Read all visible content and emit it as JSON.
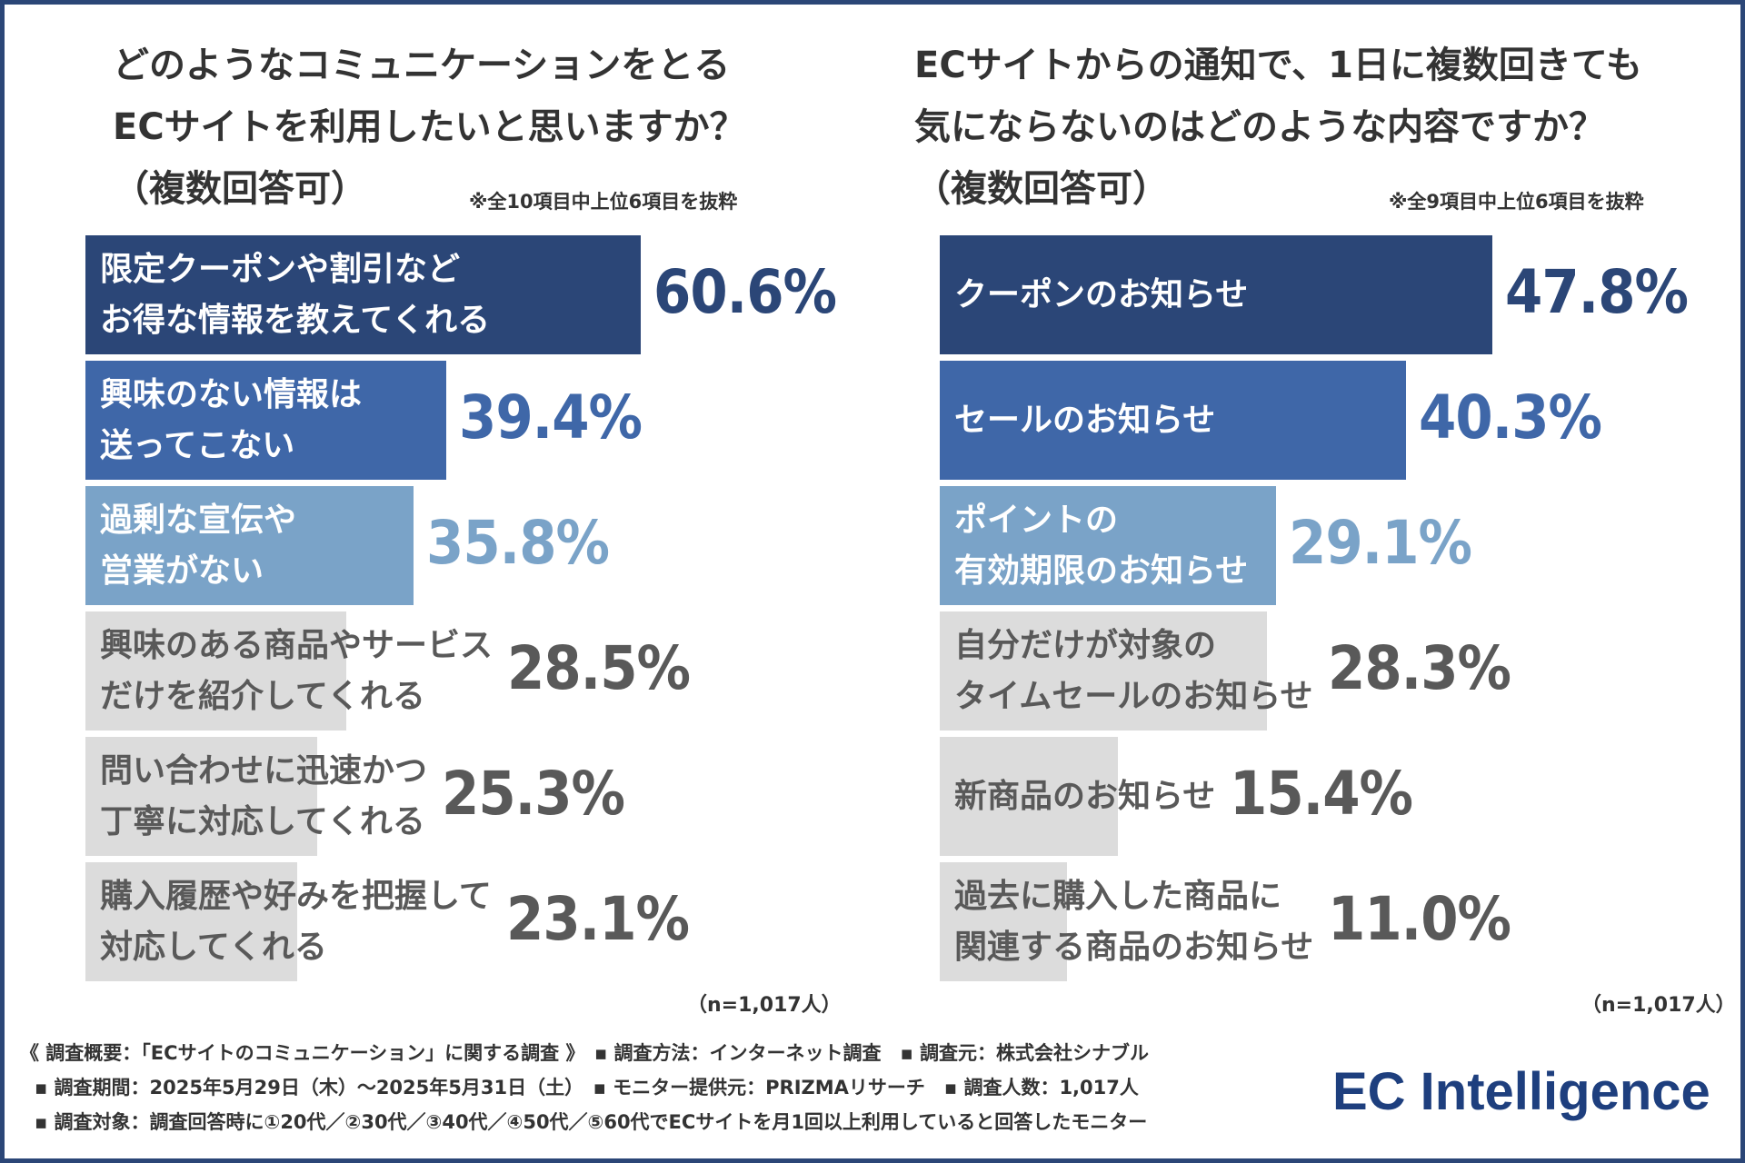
{
  "charts": [
    {
      "title_lines": [
        "どのようなコミュニケーションをとる",
        "ECサイトを利用したいと思いますか？",
        "（複数回答可）"
      ],
      "note": "※全10項目中上位6項目を抜粋",
      "sample": "（n=1,017人）"
    },
    {
      "title_lines": [
        "ECサイトからの通知で、1日に複数回きても",
        "気にならないのはどのような内容ですか？",
        "（複数回答可）"
      ],
      "note": "※全9項目中上位6項目を抜粋",
      "sample": "（n=1,017人）"
    }
  ],
  "chart_data": [
    {
      "type": "bar",
      "orientation": "horizontal",
      "title": "どのようなコミュニケーションをとるECサイトを利用したいと思いますか？（複数回答可）",
      "categories": [
        [
          "限定クーポンや割引など",
          "お得な情報を教えてくれる"
        ],
        [
          "興味のない情報は",
          "送ってこない"
        ],
        [
          "過剰な宣伝や",
          "営業がない"
        ],
        [
          "興味のある商品やサービス",
          "だけを紹介してくれる"
        ],
        [
          "問い合わせに迅速かつ",
          "丁寧に対応してくれる"
        ],
        [
          "購入履歴や好みを把握して",
          "対応してくれる"
        ]
      ],
      "values": [
        60.6,
        39.4,
        35.8,
        28.5,
        25.3,
        23.1
      ],
      "value_labels": [
        "60.6%",
        "39.4%",
        "35.8%",
        "28.5%",
        "25.3%",
        "23.1%"
      ],
      "bar_colors": [
        "#2b4677",
        "#3f67a8",
        "#7aa3c8",
        "#dcdcdc",
        "#dcdcdc",
        "#dcdcdc"
      ],
      "label_colors": [
        "#ffffff",
        "#ffffff",
        "#ffffff",
        "#595959",
        "#595959",
        "#595959"
      ],
      "value_colors": [
        "#2b4677",
        "#3f67a8",
        "#7aa3c8",
        "#595959",
        "#595959",
        "#595959"
      ]
    },
    {
      "type": "bar",
      "orientation": "horizontal",
      "title": "ECサイトからの通知で、1日に複数回きても気にならないのはどのような内容ですか？（複数回答可）",
      "categories": [
        [
          "クーポンのお知らせ"
        ],
        [
          "セールのお知らせ"
        ],
        [
          "ポイントの",
          "有効期限のお知らせ"
        ],
        [
          "自分だけが対象の",
          "タイムセールのお知らせ"
        ],
        [
          "新商品のお知らせ"
        ],
        [
          "過去に購入した商品に",
          "関連する商品のお知らせ"
        ]
      ],
      "values": [
        47.8,
        40.3,
        29.1,
        28.3,
        15.4,
        11.0
      ],
      "value_labels": [
        "47.8%",
        "40.3%",
        "29.1%",
        "28.3%",
        "15.4%",
        "11.0%"
      ],
      "bar_colors": [
        "#2b4677",
        "#3f67a8",
        "#7aa3c8",
        "#dcdcdc",
        "#dcdcdc",
        "#dcdcdc"
      ],
      "label_colors": [
        "#ffffff",
        "#ffffff",
        "#ffffff",
        "#595959",
        "#595959",
        "#595959"
      ],
      "value_colors": [
        "#2b4677",
        "#3f67a8",
        "#7aa3c8",
        "#595959",
        "#595959",
        "#595959"
      ]
    }
  ],
  "footer": {
    "line1": "《 調査概要：「ECサイトのコミュニケーション」に関する調査 》　▪ 調査方法：インターネット調査　▪ 調査元：株式会社シナブル",
    "line2": "▪ 調査期間：2025年5月29日（木）～2025年5月31日（土）　▪ モニター提供元：PRIZMAリサーチ　▪ 調査人数：1,017人",
    "line3": "▪ 調査対象：調査回答時に①20代／②30代／③40代／④50代／⑤60代でECサイトを月1回以上利用していると回答したモニター"
  },
  "logo": "EC Intelligence"
}
